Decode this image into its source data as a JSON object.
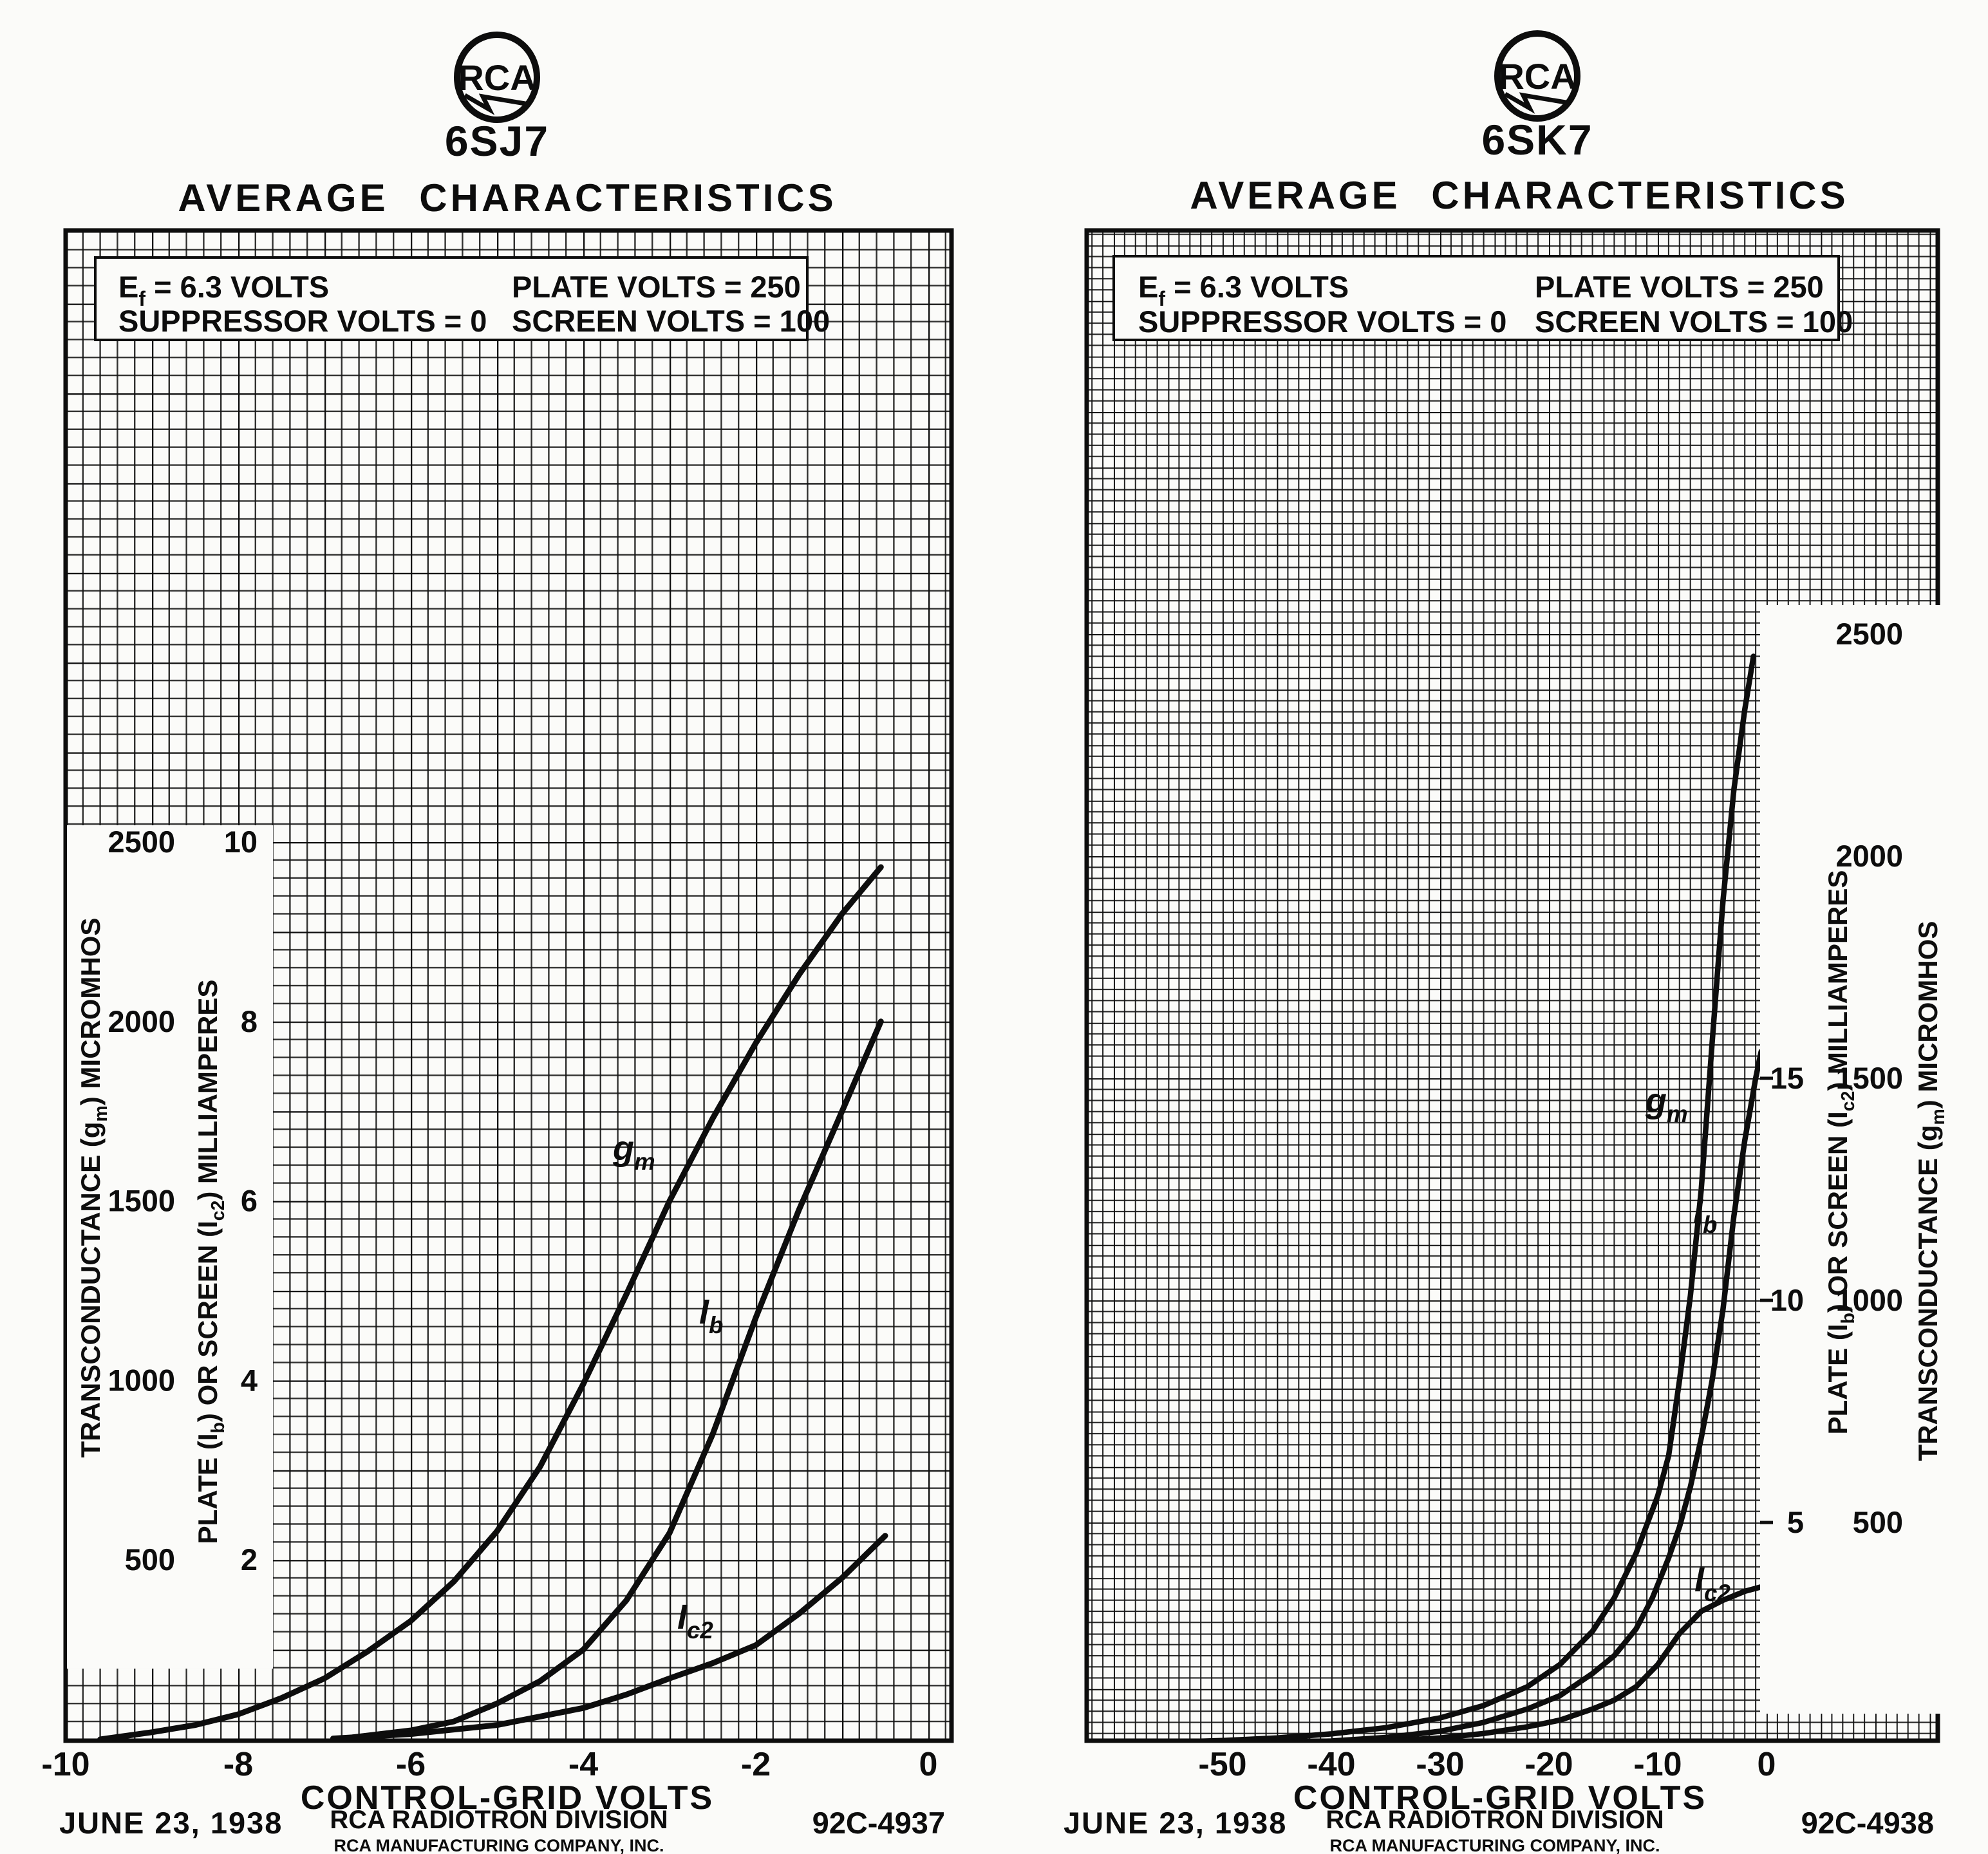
{
  "page": {
    "ink_color": "#0d0d0d",
    "paper_color": "#fbfbf9",
    "description": "RCA Radiotron datasheet scan with two average-characteristics charts"
  },
  "chart_data": [
    {
      "type": "line",
      "logo": "RCA",
      "tube": "6SJ7",
      "heading": "AVERAGE CHARACTERISTICS",
      "conditions": {
        "ef_parts": [
          {
            "t": "E"
          },
          {
            "t": "f",
            "sub": true
          },
          {
            "t": " = 6.3 VOLTS"
          }
        ],
        "plate": "PLATE VOLTS = 250",
        "suppressor": "SUPPRESSOR VOLTS = 0",
        "screen": "SCREEN VOLTS = 100"
      },
      "x_axis": {
        "title": "CONTROL-GRID VOLTS",
        "ticks": [
          -10,
          -8,
          -6,
          -4,
          -2,
          0
        ],
        "range": [
          -10,
          0.3
        ],
        "grid": true
      },
      "gm_axis": {
        "title_parts": [
          {
            "t": "TRANSCONDUCTANCE (g"
          },
          {
            "t": "m",
            "sub": true
          },
          {
            "t": ") MICROMHOS"
          }
        ],
        "ticks": [
          2500,
          2000,
          1500,
          1000,
          500
        ],
        "range": [
          0,
          4200
        ]
      },
      "ma_axis": {
        "title_parts": [
          {
            "t": "PLATE (I"
          },
          {
            "t": "b",
            "sub": true
          },
          {
            "t": ") OR SCREEN (I"
          },
          {
            "t": "c2",
            "sub": true
          },
          {
            "t": ") MILLIAMPERES"
          }
        ],
        "ticks": [
          10,
          8,
          6,
          4,
          2
        ],
        "range": [
          0,
          16.8
        ]
      },
      "curves": [
        {
          "name": "transconductance",
          "unit": "micromhos",
          "axis": "gm",
          "label_parts": [
            {
              "t": "g"
            },
            {
              "t": "m",
              "sub": true
            }
          ],
          "points": [
            [
              -9.6,
              0
            ],
            [
              -9,
              20
            ],
            [
              -8.5,
              40
            ],
            [
              -8,
              70
            ],
            [
              -7.5,
              115
            ],
            [
              -7,
              170
            ],
            [
              -6.5,
              245
            ],
            [
              -6,
              330
            ],
            [
              -5.5,
              440
            ],
            [
              -5,
              580
            ],
            [
              -4.5,
              760
            ],
            [
              -4,
              990
            ],
            [
              -3.5,
              1240
            ],
            [
              -3,
              1500
            ],
            [
              -2.5,
              1730
            ],
            [
              -2,
              1940
            ],
            [
              -1.5,
              2130
            ],
            [
              -1,
              2300
            ],
            [
              -0.55,
              2430
            ]
          ]
        },
        {
          "name": "plate-current",
          "unit": "mA",
          "axis": "ma",
          "label_parts": [
            {
              "t": "I"
            },
            {
              "t": "b",
              "sub": true
            }
          ],
          "points": [
            [
              -6.7,
              0.02
            ],
            [
              -6,
              0.1
            ],
            [
              -5.5,
              0.2
            ],
            [
              -5,
              0.4
            ],
            [
              -4.5,
              0.65
            ],
            [
              -4,
              1.0
            ],
            [
              -3.5,
              1.55
            ],
            [
              -3,
              2.3
            ],
            [
              -2.5,
              3.4
            ],
            [
              -2,
              4.7
            ],
            [
              -1.5,
              5.9
            ],
            [
              -1,
              7.0
            ],
            [
              -0.55,
              8.0
            ]
          ]
        },
        {
          "name": "screen-current",
          "unit": "mA",
          "axis": "ma",
          "label_parts": [
            {
              "t": "I"
            },
            {
              "t": "c2",
              "sub": true
            }
          ],
          "points": [
            [
              -6.9,
              0.01
            ],
            [
              -6,
              0.06
            ],
            [
              -5,
              0.16
            ],
            [
              -4,
              0.35
            ],
            [
              -3.5,
              0.5
            ],
            [
              -3,
              0.68
            ],
            [
              -2.5,
              0.85
            ],
            [
              -2,
              1.05
            ],
            [
              -1.5,
              1.4
            ],
            [
              -1,
              1.8
            ],
            [
              -0.5,
              2.27
            ]
          ]
        }
      ],
      "footer": {
        "date": "JUNE 23, 1938",
        "division": "RCA RADIOTRON DIVISION",
        "company": "RCA MANUFACTURING COMPANY, INC.",
        "code": "92C-4937"
      }
    },
    {
      "type": "line",
      "logo": "RCA",
      "tube": "6SK7",
      "heading": "AVERAGE CHARACTERISTICS",
      "conditions": {
        "ef_parts": [
          {
            "t": "E"
          },
          {
            "t": "f",
            "sub": true
          },
          {
            "t": " = 6.3 VOLTS"
          }
        ],
        "plate": "PLATE VOLTS = 250",
        "suppressor": "SUPPRESSOR VOLTS = 0",
        "screen": "SCREEN VOLTS = 100"
      },
      "x_axis": {
        "title": "CONTROL-GRID VOLTS",
        "ticks": [
          -50,
          -40,
          -30,
          -20,
          -10,
          0
        ],
        "range": [
          -62,
          15.7
        ],
        "grid": true
      },
      "gm_axis": {
        "title_parts": [
          {
            "t": "TRANSCONDUCTANCE (g"
          },
          {
            "t": "m",
            "sub": true
          },
          {
            "t": ") MICROMHOS"
          }
        ],
        "ticks": [
          2500,
          2000,
          1500,
          1000,
          500
        ],
        "range": [
          0,
          3400
        ]
      },
      "ma_axis": {
        "title_parts": [
          {
            "t": "PLATE (I"
          },
          {
            "t": "b",
            "sub": true
          },
          {
            "t": ") OR  SCREEN (I"
          },
          {
            "t": "c2",
            "sub": true
          },
          {
            "t": ") MILLIAMPERES"
          }
        ],
        "ticks": [
          15,
          10,
          5
        ],
        "range": [
          0,
          34
        ]
      },
      "curves": [
        {
          "name": "transconductance",
          "unit": "micromhos",
          "axis": "gm",
          "label_parts": [
            {
              "t": "g"
            },
            {
              "t": "m",
              "sub": true
            }
          ],
          "points": [
            [
              -57,
              4
            ],
            [
              -50,
              9
            ],
            [
              -45,
              15
            ],
            [
              -40,
              24
            ],
            [
              -35,
              38
            ],
            [
              -30,
              60
            ],
            [
              -26,
              88
            ],
            [
              -22,
              130
            ],
            [
              -19,
              180
            ],
            [
              -16,
              255
            ],
            [
              -14,
              330
            ],
            [
              -12,
              430
            ],
            [
              -10,
              560
            ],
            [
              -9,
              650
            ],
            [
              -8,
              820
            ],
            [
              -7,
              1010
            ],
            [
              -6,
              1250
            ],
            [
              -5,
              1580
            ],
            [
              -4,
              1900
            ],
            [
              -3,
              2150
            ],
            [
              -2,
              2330
            ],
            [
              -1.2,
              2450
            ]
          ]
        },
        {
          "name": "plate-current",
          "unit": "mA",
          "axis": "ma",
          "label_parts": [
            {
              "t": "I"
            },
            {
              "t": "b",
              "sub": true
            }
          ],
          "points": [
            [
              -50,
              0.02
            ],
            [
              -45,
              0.04
            ],
            [
              -40,
              0.08
            ],
            [
              -35,
              0.16
            ],
            [
              -30,
              0.3
            ],
            [
              -26,
              0.5
            ],
            [
              -22,
              0.8
            ],
            [
              -19,
              1.1
            ],
            [
              -16,
              1.6
            ],
            [
              -14,
              2.0
            ],
            [
              -12,
              2.6
            ],
            [
              -10.5,
              3.3
            ],
            [
              -9,
              4.2
            ],
            [
              -8,
              4.9
            ],
            [
              -7,
              5.8
            ],
            [
              -6,
              6.9
            ],
            [
              -5,
              8.2
            ],
            [
              -4,
              9.8
            ],
            [
              -3,
              11.9
            ],
            [
              -2,
              13.6
            ],
            [
              -1,
              15.0
            ],
            [
              -0.5,
              15.6
            ]
          ]
        },
        {
          "name": "screen-current",
          "unit": "mA",
          "axis": "ma",
          "label_parts": [
            {
              "t": "I"
            },
            {
              "t": "c2",
              "sub": true
            }
          ],
          "points": [
            [
              -45,
              0.02
            ],
            [
              -40,
              0.04
            ],
            [
              -35,
              0.08
            ],
            [
              -30,
              0.15
            ],
            [
              -26,
              0.25
            ],
            [
              -22,
              0.4
            ],
            [
              -19,
              0.55
            ],
            [
              -16,
              0.8
            ],
            [
              -14,
              1.0
            ],
            [
              -12,
              1.3
            ],
            [
              -10,
              1.8
            ],
            [
              -8,
              2.5
            ],
            [
              -6,
              3.0
            ],
            [
              -4,
              3.25
            ],
            [
              -2,
              3.45
            ],
            [
              -0.5,
              3.55
            ]
          ]
        }
      ],
      "footer": {
        "date": "JUNE 23, 1938",
        "division": "RCA RADIOTRON DIVISION",
        "company": "RCA MANUFACTURING COMPANY, INC.",
        "code": "92C-4938"
      }
    }
  ]
}
